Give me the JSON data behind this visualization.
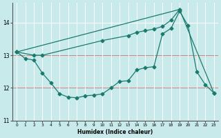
{
  "xlabel": "Humidex (Indice chaleur)",
  "bg_color": "#c8eaea",
  "grid_color_white": "#ffffff",
  "grid_color_red": "#e08080",
  "line_color": "#1a7a6e",
  "xlim": [
    -0.5,
    23.5
  ],
  "ylim": [
    11.0,
    14.6
  ],
  "yticks": [
    11,
    12,
    13,
    14
  ],
  "xticks": [
    0,
    1,
    2,
    3,
    4,
    5,
    6,
    7,
    8,
    9,
    10,
    11,
    12,
    13,
    14,
    15,
    16,
    17,
    18,
    19,
    20,
    21,
    22,
    23
  ],
  "line1_x": [
    0,
    1,
    2,
    3,
    4,
    5,
    6,
    7,
    8,
    9,
    10,
    11,
    12,
    13,
    14,
    15,
    16,
    17,
    18,
    19,
    20,
    21,
    22,
    23
  ],
  "line1_y": [
    13.1,
    12.9,
    12.85,
    12.45,
    12.15,
    11.82,
    11.72,
    11.7,
    11.76,
    11.78,
    11.82,
    12.0,
    12.2,
    12.22,
    12.55,
    12.62,
    12.65,
    13.65,
    13.82,
    14.35,
    13.9,
    12.5,
    12.1,
    11.85
  ],
  "line2_x": [
    0,
    2,
    3,
    10,
    13,
    14,
    15,
    16,
    17,
    18,
    19
  ],
  "line2_y": [
    13.1,
    13.0,
    13.0,
    13.45,
    13.6,
    13.7,
    13.75,
    13.8,
    13.88,
    14.07,
    14.4
  ],
  "line3_x": [
    0,
    19,
    23
  ],
  "line3_y": [
    13.1,
    14.4,
    11.85
  ],
  "marker_size": 2.5,
  "linewidth": 0.9
}
